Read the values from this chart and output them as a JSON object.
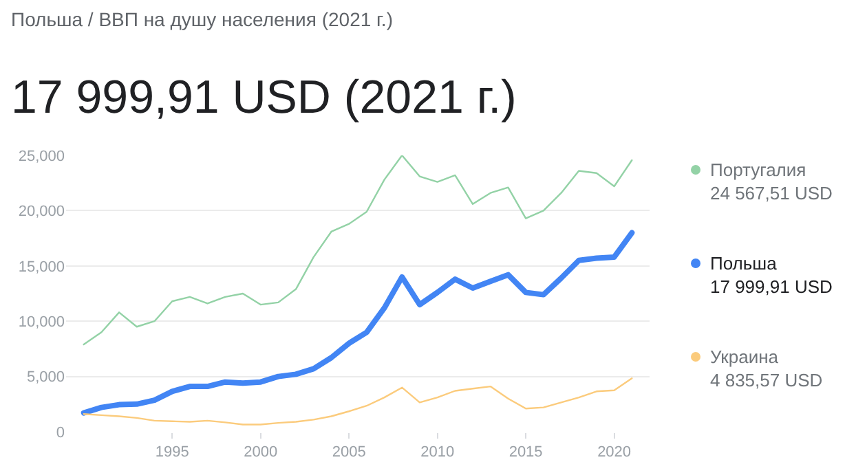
{
  "chart_data": {
    "type": "line",
    "title": "Польша / ВВП на душу населения (2021 г.)",
    "subtitle": "17 999,91 USD (2021 г.)",
    "x": [
      1990,
      1991,
      1992,
      1993,
      1994,
      1995,
      1996,
      1997,
      1998,
      1999,
      2000,
      2001,
      2002,
      2003,
      2004,
      2005,
      2006,
      2007,
      2008,
      2009,
      2010,
      2011,
      2012,
      2013,
      2014,
      2015,
      2016,
      2017,
      2018,
      2019,
      2020,
      2021
    ],
    "series": [
      {
        "name": "Португалия",
        "color": "#93d2a6",
        "values": [
          7900,
          9000,
          10800,
          9500,
          10000,
          11800,
          12200,
          11600,
          12200,
          12500,
          11500,
          11700,
          12900,
          15800,
          18100,
          18800,
          19900,
          22800,
          25000,
          23100,
          22600,
          23200,
          20600,
          21600,
          22100,
          19300,
          20000,
          21600,
          23600,
          23400,
          22200,
          24567.51
        ]
      },
      {
        "name": "Польша",
        "color": "#4285f4",
        "values": [
          1700,
          2200,
          2450,
          2500,
          2850,
          3650,
          4100,
          4100,
          4500,
          4400,
          4500,
          5000,
          5200,
          5700,
          6700,
          8000,
          9000,
          11200,
          14000,
          11500,
          12600,
          13800,
          13000,
          13600,
          14200,
          12600,
          12400,
          13900,
          15500,
          15700,
          15800,
          17999.91
        ]
      },
      {
        "name": "Украина",
        "color": "#fbcb7c",
        "values": [
          1600,
          1500,
          1400,
          1250,
          1000,
          950,
          900,
          1000,
          850,
          650,
          650,
          800,
          900,
          1100,
          1400,
          1850,
          2350,
          3100,
          4000,
          2650,
          3100,
          3700,
          3900,
          4100,
          3000,
          2100,
          2200,
          2650,
          3100,
          3650,
          3750,
          4835.57
        ]
      }
    ],
    "annotations": [
      "24 567,51 USD",
      "17 999,91 USD",
      "4 835,57 USD"
    ],
    "xlim": [
      1989,
      2022
    ],
    "xticks": [
      1995,
      2000,
      2005,
      2010,
      2015,
      2020
    ],
    "ylim": [
      0,
      25000
    ],
    "yticks": [
      {
        "value": 0,
        "label": "0"
      },
      {
        "value": 5000,
        "label": "5,000"
      },
      {
        "value": 10000,
        "label": "10,000"
      },
      {
        "value": 15000,
        "label": "15,000"
      },
      {
        "value": 20000,
        "label": "20,000"
      },
      {
        "value": 25000,
        "label": "25,000"
      }
    ],
    "grid": "y",
    "legend": "right"
  }
}
